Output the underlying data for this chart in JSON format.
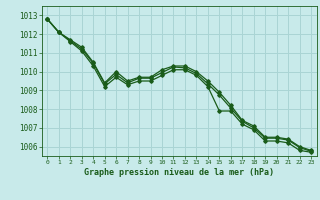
{
  "title": "Graphe pression niveau de la mer (hPa)",
  "bg_color": "#c8eaea",
  "grid_color": "#aad4d4",
  "line_color": "#1a5c1a",
  "marker_color": "#1a5c1a",
  "xlim": [
    -0.5,
    23.5
  ],
  "ylim": [
    1005.5,
    1013.5
  ],
  "yticks": [
    1006,
    1007,
    1008,
    1009,
    1010,
    1011,
    1012,
    1013
  ],
  "xticks": [
    0,
    1,
    2,
    3,
    4,
    5,
    6,
    7,
    8,
    9,
    10,
    11,
    12,
    13,
    14,
    15,
    16,
    17,
    18,
    19,
    20,
    21,
    22,
    23
  ],
  "series": [
    [
      1012.8,
      1012.1,
      1011.7,
      1011.3,
      1010.5,
      1009.4,
      1010.0,
      1009.5,
      1009.7,
      1009.7,
      1010.1,
      1010.3,
      1010.3,
      1010.0,
      1009.5,
      1008.9,
      1008.2,
      1007.4,
      1007.1,
      1006.5,
      1006.5,
      1006.4,
      1006.0,
      1005.8
    ],
    [
      1012.8,
      1012.1,
      1011.65,
      1011.2,
      1010.45,
      1009.35,
      1009.85,
      1009.4,
      1009.65,
      1009.65,
      1009.95,
      1010.25,
      1010.2,
      1009.9,
      1009.35,
      1008.75,
      1008.05,
      1007.35,
      1007.0,
      1006.45,
      1006.45,
      1006.35,
      1005.95,
      1005.75
    ],
    [
      1012.8,
      1012.1,
      1011.6,
      1011.1,
      1010.3,
      1009.2,
      1009.7,
      1009.3,
      1009.5,
      1009.5,
      1009.8,
      1010.1,
      1010.1,
      1009.8,
      1009.2,
      1007.9,
      1007.9,
      1007.2,
      1006.9,
      1006.3,
      1006.3,
      1006.2,
      1005.8,
      1005.7
    ]
  ]
}
